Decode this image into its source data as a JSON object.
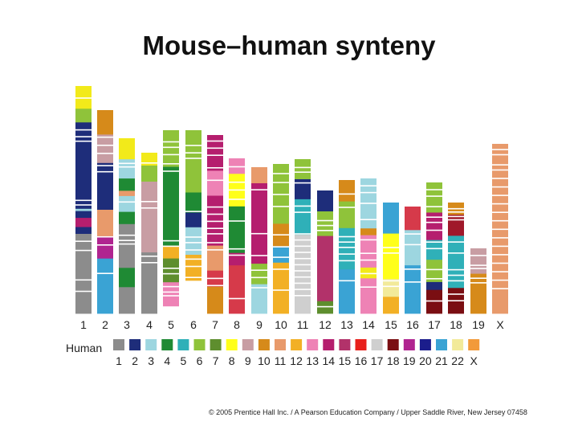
{
  "title": "Mouse–human synteny",
  "legend_title": "Human",
  "copyright": "© 2005 Prentice Hall Inc. / A Pearson Education Company / Upper Saddle River, New Jersey 07458",
  "human_chromosomes": [
    {
      "label": "1",
      "color": "#8c8c8c"
    },
    {
      "label": "2",
      "color": "#1e2d7a"
    },
    {
      "label": "3",
      "color": "#9dd6e0"
    },
    {
      "label": "4",
      "color": "#1f8a34"
    },
    {
      "label": "5",
      "color": "#2fb0b8"
    },
    {
      "label": "6",
      "color": "#8fc33a"
    },
    {
      "label": "7",
      "color": "#5e8e2e"
    },
    {
      "label": "8",
      "color": "#ffff1a"
    },
    {
      "label": "9",
      "color": "#c89da3"
    },
    {
      "label": "10",
      "color": "#d68a1a"
    },
    {
      "label": "11",
      "color": "#e89a6b"
    },
    {
      "label": "12",
      "color": "#f2b025"
    },
    {
      "label": "13",
      "color": "#ee82b5"
    },
    {
      "label": "14",
      "color": "#b51e6e"
    },
    {
      "label": "15",
      "color": "#b2326a"
    },
    {
      "label": "16",
      "color": "#e8201c"
    },
    {
      "label": "17",
      "color": "#cfcfcf"
    },
    {
      "label": "18",
      "color": "#7a0e12"
    },
    {
      "label": "19",
      "color": "#b02490"
    },
    {
      "label": "20",
      "color": "#1b1d8c"
    },
    {
      "label": "21",
      "color": "#3aa3d4"
    },
    {
      "label": "22",
      "color": "#f2ea9a"
    },
    {
      "label": "X",
      "color": "#f29a3a"
    }
  ],
  "mouse_chromosomes": [
    {
      "label": "1",
      "segments": [
        "#f2ea1a",
        "#8fc33a",
        "#1e2d7a",
        "#9dd6e0",
        "#1e2d7a",
        "#b51e6e",
        "#1e2d7a",
        "#8c8c8c"
      ]
    },
    {
      "label": "2",
      "segments": [
        "#d68a1a",
        "#c89da3",
        "#1e2d7a",
        "#e89a6b",
        "#b02490",
        "#3aa3d4"
      ]
    },
    {
      "label": "3",
      "segments": [
        "#f2ea1a",
        "#9dd6e0",
        "#1f8a34",
        "#e89a6b",
        "#9dd6e0",
        "#1f8a34",
        "#8c8c8c",
        "#1f8a34",
        "#8c8c8c"
      ]
    },
    {
      "label": "4",
      "segments": [
        "#f2ea1a",
        "#8fc33a",
        "#c89da3",
        "#8c8c8c"
      ]
    },
    {
      "label": "5",
      "segments": [
        "#8fc33a",
        "#1f8a34",
        "#f2b025",
        "#5e8e2e",
        "#ee82b5"
      ]
    },
    {
      "label": "6",
      "segments": [
        "#8fc33a",
        "#1f8a34",
        "#1e2d7a",
        "#9dd6e0",
        "#f2b025"
      ]
    },
    {
      "label": "7",
      "segments": [
        "#b51e6e",
        "#ee82b5",
        "#b51e6e",
        "#e89a6b",
        "#d63a4a",
        "#d68a1a"
      ]
    },
    {
      "label": "8",
      "segments": [
        "#ee82b5",
        "#ffff1a",
        "#1f8a34",
        "#b51e6e",
        "#d63a4a"
      ]
    },
    {
      "label": "9",
      "segments": [
        "#e89a6b",
        "#b51e6e",
        "#8fc33a",
        "#9dd6e0"
      ]
    },
    {
      "label": "10",
      "segments": [
        "#8fc33a",
        "#d68a1a",
        "#3aa3d4",
        "#f2b025"
      ]
    },
    {
      "label": "11",
      "segments": [
        "#8fc33a",
        "#1e2d7a",
        "#2fb0b8",
        "#cfcfcf"
      ]
    },
    {
      "label": "12",
      "segments": [
        "#1e2d7a",
        "#8fc33a",
        "#b2326a",
        "#5e8e2e"
      ]
    },
    {
      "label": "13",
      "segments": [
        "#d68a1a",
        "#8fc33a",
        "#2fb0b8",
        "#3aa3d4"
      ]
    },
    {
      "label": "14",
      "segments": [
        "#9dd6e0",
        "#d68a1a",
        "#ee82b5",
        "#f2ea1a",
        "#ee82b5"
      ]
    },
    {
      "label": "15",
      "segments": [
        "#3aa3d4",
        "#ffff1a",
        "#f2ea9a",
        "#f2b025"
      ]
    },
    {
      "label": "16",
      "segments": [
        "#d63a4a",
        "#9dd6e0",
        "#3aa3d4"
      ]
    },
    {
      "label": "17",
      "segments": [
        "#8fc33a",
        "#b51e6e",
        "#2fb0b8",
        "#8fc33a",
        "#1e2d7a",
        "#7a0e12"
      ]
    },
    {
      "label": "18",
      "segments": [
        "#d68a1a",
        "#a0182a",
        "#2fb0b8",
        "#7a0e12"
      ]
    },
    {
      "label": "19",
      "segments": [
        "#c89da3",
        "#d68a1a"
      ]
    },
    {
      "label": "X",
      "segments": [
        "#e89a6b"
      ]
    }
  ]
}
